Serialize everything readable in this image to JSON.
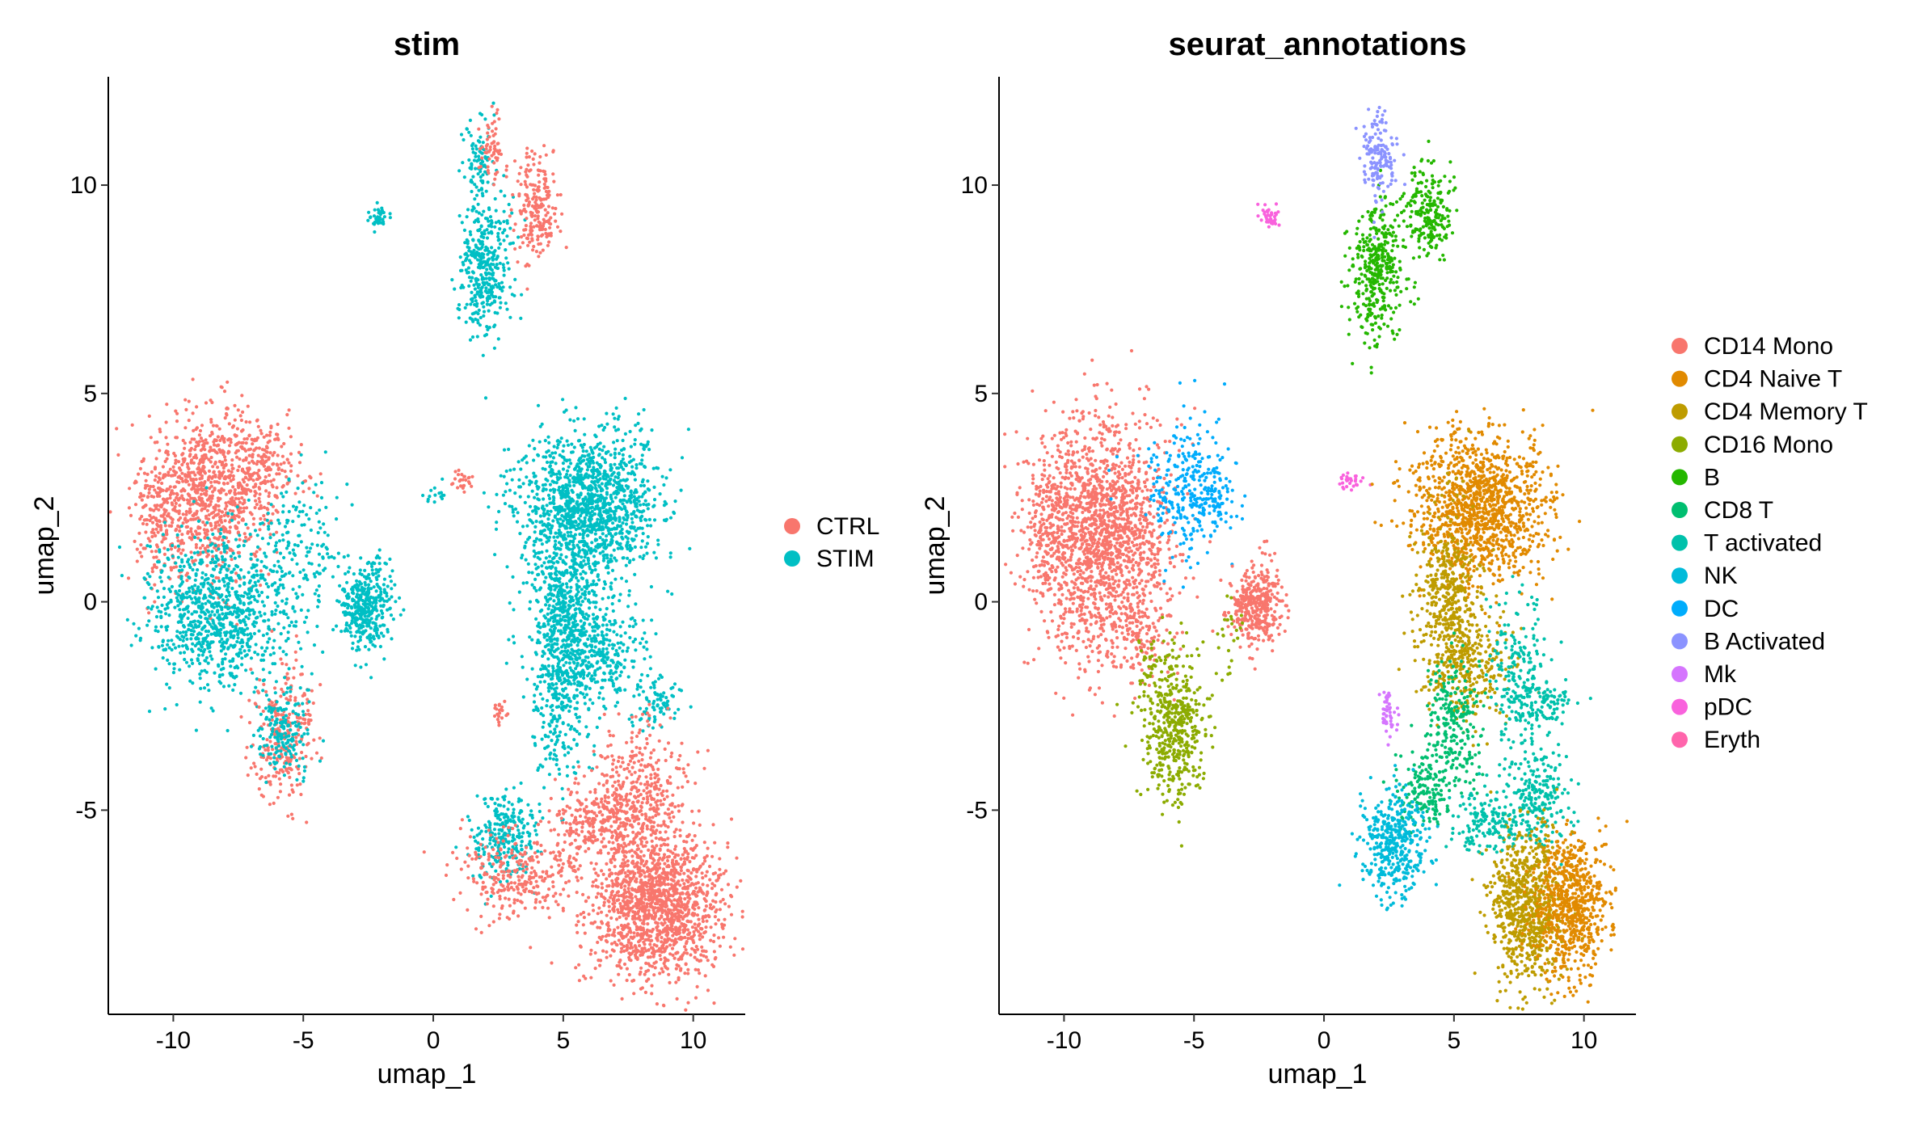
{
  "figure": {
    "panels": [
      {
        "title": "stim",
        "xlabel": "umap_1",
        "ylabel": "umap_2"
      },
      {
        "title": "seurat_annotations",
        "xlabel": "umap_1",
        "ylabel": "umap_2"
      }
    ]
  },
  "chart_data": [
    {
      "type": "scatter",
      "title": "stim",
      "xlabel": "umap_1",
      "ylabel": "umap_2",
      "xlim": [
        -12.5,
        12
      ],
      "ylim": [
        -9.9,
        12.6
      ],
      "x_ticks": [
        -10,
        -5,
        0,
        5,
        10
      ],
      "y_ticks": [
        -5,
        0,
        5,
        10
      ],
      "x_tick_labels": [
        "-10",
        "-5",
        "0",
        "5",
        "10"
      ],
      "y_tick_labels": [
        "-5",
        "0",
        "5",
        "10"
      ],
      "grid": false,
      "legend_position": "right",
      "series": [
        {
          "name": "CTRL",
          "color": "#F8766D"
        },
        {
          "name": "STIM",
          "color": "#00BFC4"
        }
      ],
      "clusters": [
        {
          "cx": -8.6,
          "cy": 2.6,
          "sx": 1.2,
          "sy": 1.0,
          "n": 900,
          "series": "CTRL"
        },
        {
          "cx": -10.6,
          "cy": 2.1,
          "sx": 0.4,
          "sy": 0.7,
          "n": 120,
          "series": "CTRL"
        },
        {
          "cx": -6.4,
          "cy": 3.3,
          "sx": 0.8,
          "sy": 0.5,
          "n": 160,
          "series": "CTRL"
        },
        {
          "cx": -8.3,
          "cy": -0.2,
          "sx": 1.4,
          "sy": 0.9,
          "n": 900,
          "series": "STIM"
        },
        {
          "cx": -5.2,
          "cy": 1.2,
          "sx": 0.8,
          "sy": 1.0,
          "n": 160,
          "series": "STIM"
        },
        {
          "cx": -5.8,
          "cy": -3.2,
          "sx": 0.6,
          "sy": 0.8,
          "n": 260,
          "series": "CTRL"
        },
        {
          "cx": -5.7,
          "cy": -3.1,
          "sx": 0.5,
          "sy": 0.6,
          "n": 180,
          "series": "STIM"
        },
        {
          "cx": -2.6,
          "cy": -0.1,
          "sx": 0.5,
          "sy": 0.5,
          "n": 380,
          "series": "STIM"
        },
        {
          "cx": -2.1,
          "cy": 9.2,
          "sx": 0.2,
          "sy": 0.15,
          "n": 40,
          "series": "STIM"
        },
        {
          "cx": 1.1,
          "cy": 2.9,
          "sx": 0.25,
          "sy": 0.12,
          "n": 25,
          "series": "CTRL"
        },
        {
          "cx": 0.1,
          "cy": 2.6,
          "sx": 0.3,
          "sy": 0.15,
          "n": 15,
          "series": "STIM"
        },
        {
          "cx": 2.0,
          "cy": 8.0,
          "sx": 0.5,
          "sy": 0.8,
          "n": 380,
          "series": "STIM"
        },
        {
          "cx": 4.0,
          "cy": 9.4,
          "sx": 0.45,
          "sy": 0.6,
          "n": 220,
          "series": "CTRL"
        },
        {
          "cx": 1.8,
          "cy": 10.6,
          "sx": 0.3,
          "sy": 0.6,
          "n": 90,
          "series": "STIM"
        },
        {
          "cx": 2.3,
          "cy": 10.8,
          "sx": 0.25,
          "sy": 0.4,
          "n": 60,
          "series": "CTRL"
        },
        {
          "cx": 6.0,
          "cy": 2.3,
          "sx": 1.3,
          "sy": 0.9,
          "n": 1300,
          "series": "STIM"
        },
        {
          "cx": 5.0,
          "cy": -0.2,
          "sx": 0.7,
          "sy": 1.0,
          "n": 500,
          "series": "STIM"
        },
        {
          "cx": 6.3,
          "cy": -1.2,
          "sx": 0.9,
          "sy": 0.7,
          "n": 350,
          "series": "STIM"
        },
        {
          "cx": 4.8,
          "cy": -2.6,
          "sx": 0.5,
          "sy": 0.9,
          "n": 220,
          "series": "STIM"
        },
        {
          "cx": 8.6,
          "cy": -2.4,
          "sx": 0.5,
          "sy": 0.3,
          "n": 80,
          "series": "STIM"
        },
        {
          "cx": 2.7,
          "cy": -5.6,
          "sx": 0.6,
          "sy": 0.5,
          "n": 260,
          "series": "STIM"
        },
        {
          "cx": 3.4,
          "cy": -6.6,
          "sx": 1.2,
          "sy": 0.5,
          "n": 300,
          "series": "CTRL"
        },
        {
          "cx": 8.6,
          "cy": -7.3,
          "sx": 1.3,
          "sy": 0.9,
          "n": 1400,
          "series": "CTRL"
        },
        {
          "cx": 7.9,
          "cy": -4.8,
          "sx": 0.9,
          "sy": 0.9,
          "n": 450,
          "series": "CTRL"
        },
        {
          "cx": 6.1,
          "cy": -5.3,
          "sx": 0.8,
          "sy": 0.4,
          "n": 180,
          "series": "CTRL"
        },
        {
          "cx": 2.6,
          "cy": -2.6,
          "sx": 0.15,
          "sy": 0.2,
          "n": 20,
          "series": "CTRL"
        }
      ]
    },
    {
      "type": "scatter",
      "title": "seurat_annotations",
      "xlabel": "umap_1",
      "ylabel": "umap_2",
      "xlim": [
        -12.5,
        12
      ],
      "ylim": [
        -9.9,
        12.6
      ],
      "x_ticks": [
        -10,
        -5,
        0,
        5,
        10
      ],
      "y_ticks": [
        -5,
        0,
        5,
        10
      ],
      "x_tick_labels": [
        "-10",
        "-5",
        "0",
        "5",
        "10"
      ],
      "y_tick_labels": [
        "-5",
        "0",
        "5",
        "10"
      ],
      "grid": false,
      "legend_position": "right",
      "series": [
        {
          "name": "CD14 Mono",
          "color": "#F8766D"
        },
        {
          "name": "CD4 Naive T",
          "color": "#E18A00"
        },
        {
          "name": "CD4 Memory T",
          "color": "#BE9C00"
        },
        {
          "name": "CD16 Mono",
          "color": "#8CAB00"
        },
        {
          "name": "B",
          "color": "#24B700"
        },
        {
          "name": "CD8 T",
          "color": "#00BE70"
        },
        {
          "name": "T activated",
          "color": "#00C1AB"
        },
        {
          "name": "NK",
          "color": "#00BBDA"
        },
        {
          "name": "DC",
          "color": "#00ACFC"
        },
        {
          "name": "B Activated",
          "color": "#8B93FF"
        },
        {
          "name": "Mk",
          "color": "#D575FE"
        },
        {
          "name": "pDC",
          "color": "#F962DD"
        },
        {
          "name": "Eryth",
          "color": "#FF65AC"
        }
      ],
      "clusters": [
        {
          "cx": -8.6,
          "cy": 1.6,
          "sx": 1.3,
          "sy": 1.4,
          "n": 1700,
          "series": "CD14 Mono"
        },
        {
          "cx": -10.6,
          "cy": 1.5,
          "sx": 0.4,
          "sy": 0.9,
          "n": 150,
          "series": "CD14 Mono"
        },
        {
          "cx": -7.0,
          "cy": -0.6,
          "sx": 0.6,
          "sy": 0.6,
          "n": 120,
          "series": "CD14 Mono"
        },
        {
          "cx": -5.3,
          "cy": 2.8,
          "sx": 0.8,
          "sy": 0.8,
          "n": 280,
          "series": "DC"
        },
        {
          "cx": -4.3,
          "cy": 2.4,
          "sx": 0.4,
          "sy": 0.5,
          "n": 60,
          "series": "DC"
        },
        {
          "cx": -5.7,
          "cy": -3.1,
          "sx": 0.6,
          "sy": 0.8,
          "n": 440,
          "series": "CD16 Mono"
        },
        {
          "cx": -6.2,
          "cy": -1.6,
          "sx": 0.4,
          "sy": 0.4,
          "n": 60,
          "series": "CD16 Mono"
        },
        {
          "cx": -2.6,
          "cy": -0.1,
          "sx": 0.5,
          "sy": 0.5,
          "n": 380,
          "series": "CD14 Mono"
        },
        {
          "cx": -3.7,
          "cy": -0.8,
          "sx": 0.25,
          "sy": 0.5,
          "n": 25,
          "series": "CD16 Mono"
        },
        {
          "cx": -2.1,
          "cy": 9.2,
          "sx": 0.2,
          "sy": 0.15,
          "n": 40,
          "series": "pDC"
        },
        {
          "cx": 1.0,
          "cy": 2.9,
          "sx": 0.3,
          "sy": 0.12,
          "n": 30,
          "series": "pDC"
        },
        {
          "cx": 2.0,
          "cy": 8.0,
          "sx": 0.5,
          "sy": 0.8,
          "n": 380,
          "series": "B"
        },
        {
          "cx": 4.0,
          "cy": 9.4,
          "sx": 0.45,
          "sy": 0.6,
          "n": 220,
          "series": "B"
        },
        {
          "cx": 2.1,
          "cy": 10.6,
          "sx": 0.35,
          "sy": 0.6,
          "n": 150,
          "series": "B Activated"
        },
        {
          "cx": 6.0,
          "cy": 2.3,
          "sx": 1.3,
          "sy": 0.9,
          "n": 1200,
          "series": "CD4 Naive T"
        },
        {
          "cx": 4.8,
          "cy": 0.0,
          "sx": 0.6,
          "sy": 1.2,
          "n": 450,
          "series": "CD4 Memory T"
        },
        {
          "cx": 5.6,
          "cy": -1.5,
          "sx": 0.8,
          "sy": 0.6,
          "n": 250,
          "series": "CD4 Memory T"
        },
        {
          "cx": 4.9,
          "cy": -3.0,
          "sx": 0.5,
          "sy": 0.9,
          "n": 250,
          "series": "CD8 T"
        },
        {
          "cx": 3.8,
          "cy": -4.6,
          "sx": 0.6,
          "sy": 0.5,
          "n": 150,
          "series": "CD8 T"
        },
        {
          "cx": 7.5,
          "cy": -2.0,
          "sx": 0.5,
          "sy": 0.9,
          "n": 220,
          "series": "T activated"
        },
        {
          "cx": 8.6,
          "cy": -2.4,
          "sx": 0.5,
          "sy": 0.3,
          "n": 80,
          "series": "T activated"
        },
        {
          "cx": 8.2,
          "cy": -4.7,
          "sx": 0.6,
          "sy": 0.6,
          "n": 220,
          "series": "T activated"
        },
        {
          "cx": 2.7,
          "cy": -5.8,
          "sx": 0.6,
          "sy": 0.6,
          "n": 400,
          "series": "NK"
        },
        {
          "cx": 7.8,
          "cy": -7.3,
          "sx": 0.7,
          "sy": 1.0,
          "n": 750,
          "series": "CD4 Memory T"
        },
        {
          "cx": 9.5,
          "cy": -7.3,
          "sx": 0.7,
          "sy": 0.8,
          "n": 700,
          "series": "CD4 Naive T"
        },
        {
          "cx": 6.3,
          "cy": -5.3,
          "sx": 0.7,
          "sy": 0.4,
          "n": 160,
          "series": "T activated"
        },
        {
          "cx": 2.5,
          "cy": -2.6,
          "sx": 0.15,
          "sy": 0.3,
          "n": 45,
          "series": "Mk"
        }
      ]
    }
  ]
}
